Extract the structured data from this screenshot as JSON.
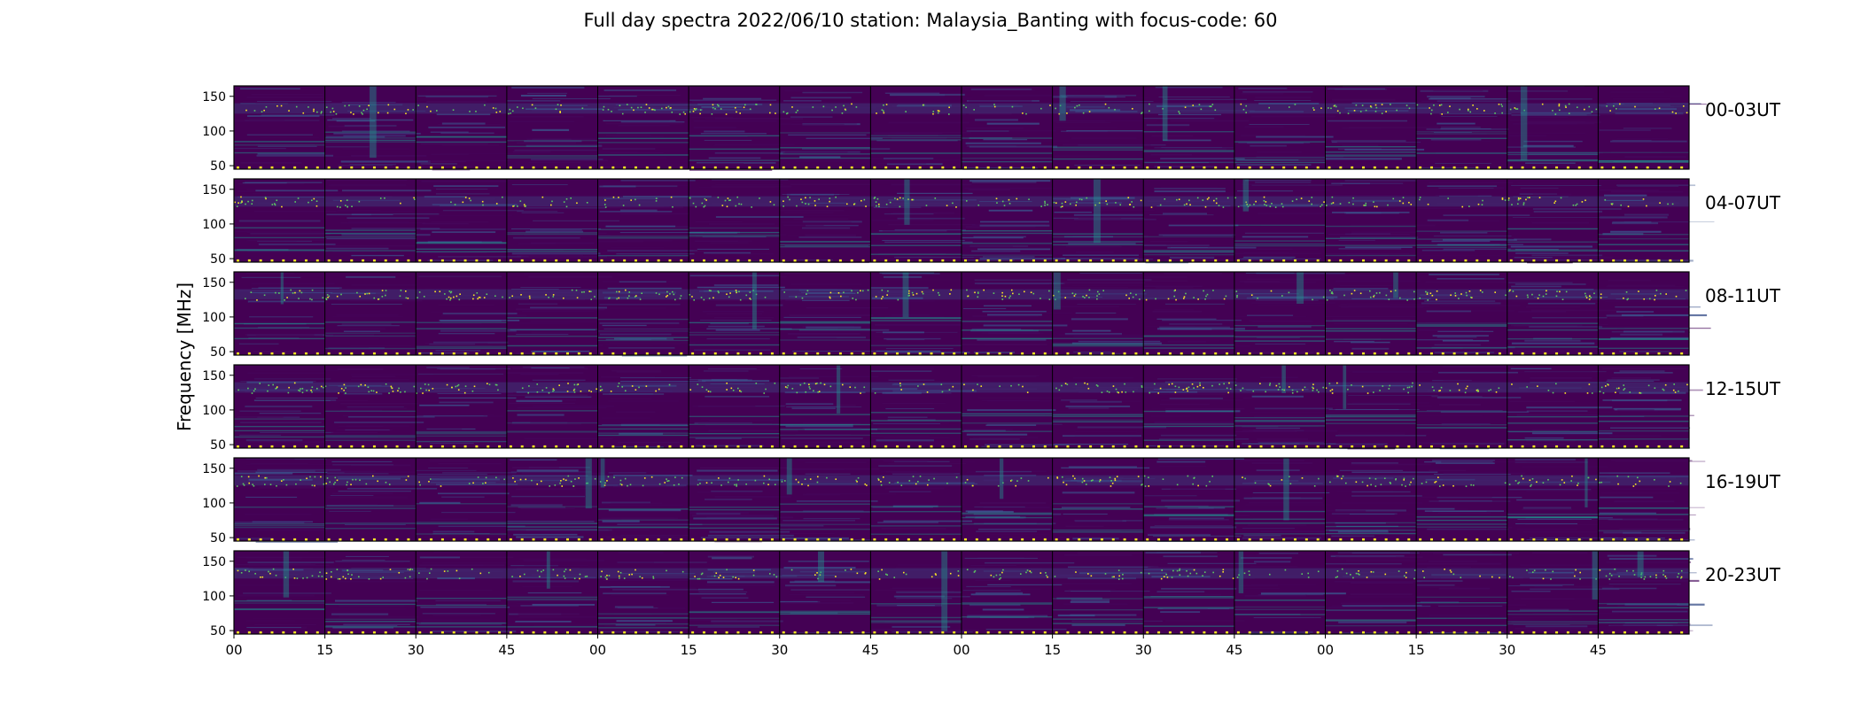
{
  "chart_data": {
    "type": "heatmap",
    "title": "Full day spectra 2022/06/10 station: Malaysia_Banting with focus-code: 60",
    "ylabel": "Frequency [MHz]",
    "xlabel": "",
    "ylim": [
      45,
      165
    ],
    "yticks": [
      "50",
      "100",
      "150"
    ],
    "xticks": [
      "00",
      "15",
      "30",
      "45",
      "00",
      "15",
      "30",
      "45",
      "00",
      "15",
      "30",
      "45",
      "00",
      "15",
      "30",
      "45"
    ],
    "rows": [
      {
        "label": "00-03UT",
        "hours": [
          0,
          1,
          2,
          3
        ]
      },
      {
        "label": "04-07UT",
        "hours": [
          4,
          5,
          6,
          7
        ]
      },
      {
        "label": "08-11UT",
        "hours": [
          8,
          9,
          10,
          11
        ]
      },
      {
        "label": "12-15UT",
        "hours": [
          12,
          13,
          14,
          15
        ]
      },
      {
        "label": "16-19UT",
        "hours": [
          16,
          17,
          18,
          19
        ]
      },
      {
        "label": "20-23UT",
        "hours": [
          20,
          21,
          22,
          23
        ]
      }
    ],
    "segments_per_row": 16,
    "segment_minutes": 15,
    "colormap": "viridis",
    "colors": {
      "background": "#440154",
      "low": "#46085c",
      "mid": "#3b528b",
      "band": "#21918c",
      "high": "#5ec962",
      "peak": "#fde725"
    },
    "features": {
      "persistent_rfi_band_mhz": [
        125,
        140
      ],
      "calibration_dots_mhz": 47
    }
  }
}
